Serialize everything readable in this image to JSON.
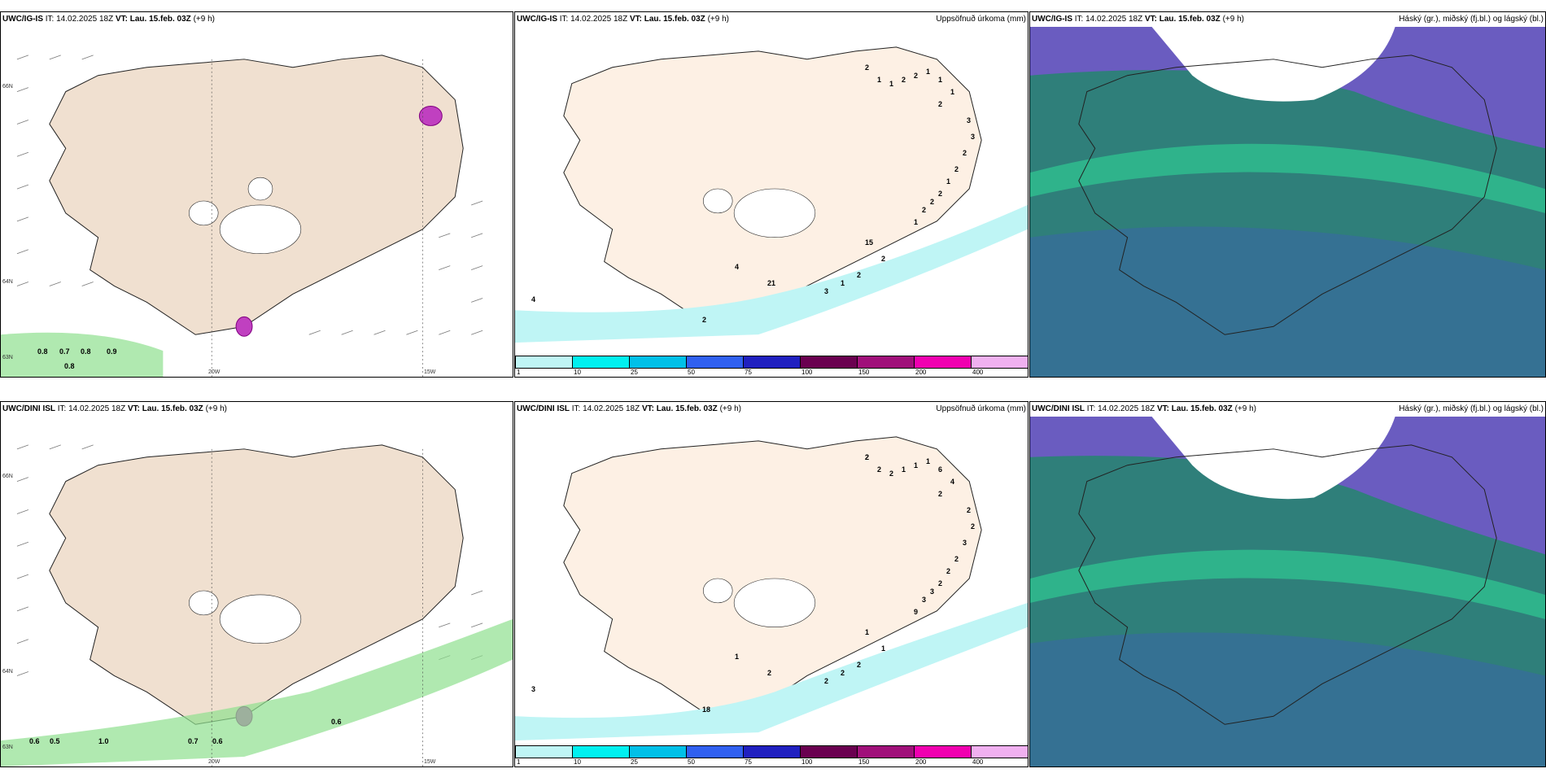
{
  "rows": [
    {
      "model": "UWC/IG-IS",
      "it_label": "IT:",
      "it_value": "14.02.2025 18Z",
      "vt_label": "VT:",
      "vt_value": "Lau. 15.feb. 03Z",
      "lead": "(+9 h)",
      "precip_title": "Uppsöfnuð úrkoma (mm)",
      "cloud_title": "Háský (gr.), miðský (fj.bl.) og lágský (bl.)",
      "wind_labels": [
        "0.8",
        "0.7",
        "0.8",
        "0.9",
        "0.8"
      ],
      "precip_numbers": [
        "2",
        "1",
        "1",
        "2",
        "2",
        "1",
        "1",
        "1",
        "2",
        "3",
        "3",
        "2",
        "2",
        "1",
        "2",
        "2",
        "2",
        "1",
        "15",
        "2",
        "2",
        "1",
        "3",
        "21",
        "4",
        "4",
        "2"
      ]
    },
    {
      "model": "UWC/DINI ISL",
      "it_label": "IT:",
      "it_value": "14.02.2025 18Z",
      "vt_label": "VT:",
      "vt_value": "Lau. 15.feb. 03Z",
      "lead": "(+9 h)",
      "precip_title": "Uppsöfnuð úrkoma (mm)",
      "cloud_title": "Háský (gr.), miðský (fj.bl.) og lágský (bl.)",
      "wind_labels": [
        "0.6",
        "0.5",
        "1.0",
        "0.7",
        "0.6",
        "0.6"
      ],
      "precip_numbers": [
        "2",
        "2",
        "2",
        "1",
        "1",
        "1",
        "6",
        "4",
        "2",
        "2",
        "2",
        "3",
        "2",
        "2",
        "2",
        "3",
        "3",
        "9",
        "1",
        "1",
        "2",
        "2",
        "2",
        "2",
        "1",
        "3",
        "18",
        "2"
      ]
    }
  ],
  "axis_labels": {
    "lon1": "20W",
    "lon2": "15W",
    "lat1": "66N",
    "lat2": "64N",
    "lat3": "63N"
  },
  "colorbar": {
    "ticks": [
      "1",
      "10",
      "25",
      "50",
      "75",
      "100",
      "150",
      "200",
      "400"
    ],
    "colors": [
      "#bff5f5",
      "#00f0f0",
      "#00c0e8",
      "#3060f0",
      "#2020c0",
      "#6a0050",
      "#a0107a",
      "#f000b0",
      "#f0b0f0"
    ]
  },
  "colors": {
    "land": "#f0e0d0",
    "land_precip": "#fdf0e4",
    "cloud_low": "#2f7f7a",
    "cloud_mid": "#3a66a8",
    "cloud_high": "#6a5cc0",
    "cloud_green": "#2fc090"
  }
}
